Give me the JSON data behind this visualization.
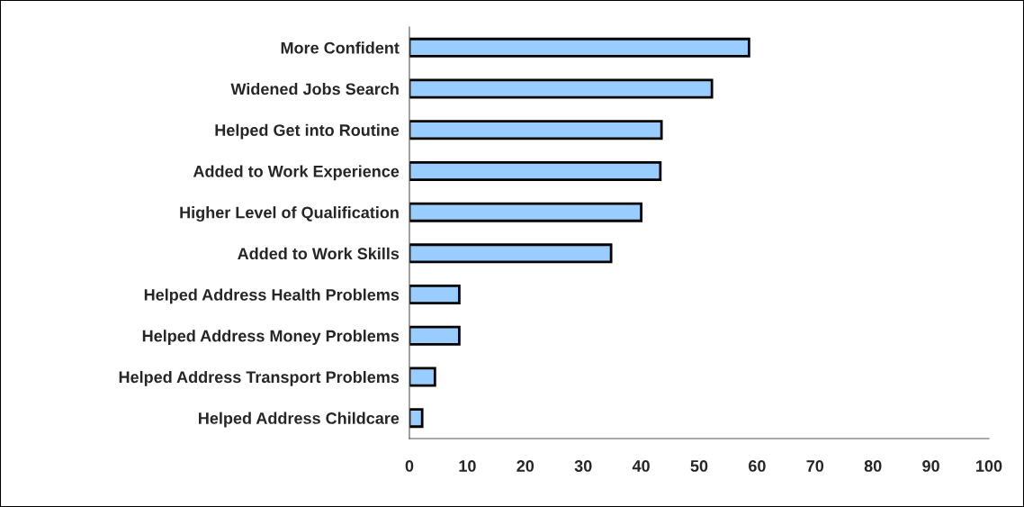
{
  "chart_data": {
    "type": "bar",
    "orientation": "horizontal",
    "categories": [
      "More Confident",
      "Widened Jobs Search",
      "Helped Get into Routine",
      "Added to Work Experience",
      "Higher Level of Qualification",
      "Added to Work Skills",
      "Helped Address Health Problems",
      "Helped Address Money Problems",
      "Helped Address Transport Problems",
      "Helped Address Childcare"
    ],
    "values": [
      58.6,
      52.2,
      43.5,
      43.3,
      40.0,
      34.8,
      8.6,
      8.6,
      4.4,
      2.2
    ],
    "color": "#99ccff",
    "xlim": [
      0,
      100
    ],
    "xticks": [
      0,
      10,
      20,
      30,
      40,
      50,
      60,
      70,
      80,
      90,
      100
    ],
    "grid": false,
    "legend": false
  }
}
